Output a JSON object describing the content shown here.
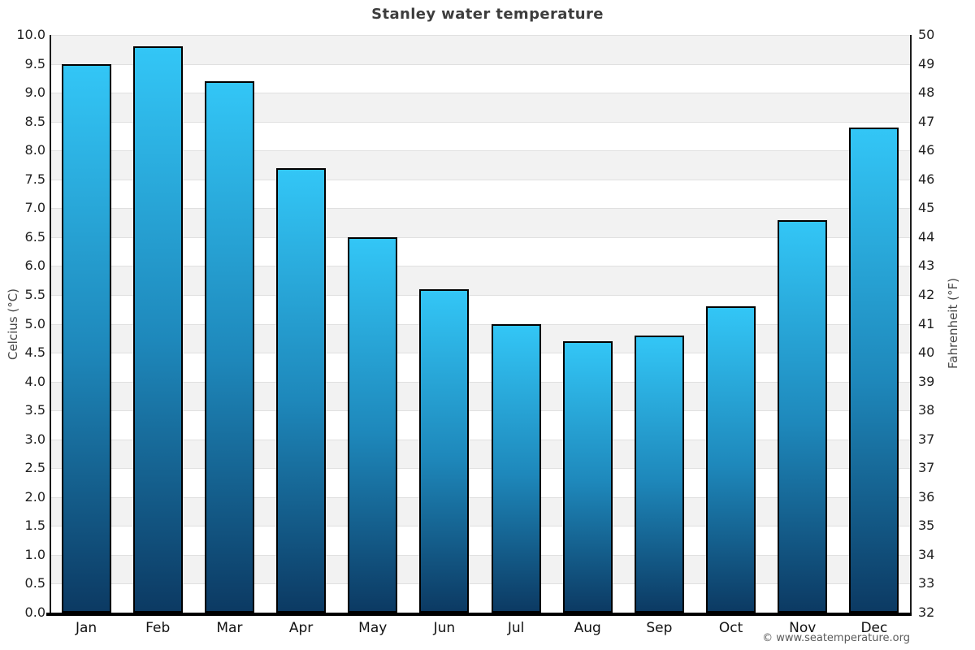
{
  "title": "Stanley water temperature",
  "attribution": "© www.seatemperature.org",
  "chart_data": {
    "type": "bar",
    "title": "Stanley water temperature",
    "categories": [
      "Jan",
      "Feb",
      "Mar",
      "Apr",
      "May",
      "Jun",
      "Jul",
      "Aug",
      "Sep",
      "Oct",
      "Nov",
      "Dec"
    ],
    "values": [
      9.5,
      9.8,
      9.2,
      7.7,
      6.5,
      5.6,
      5.0,
      4.7,
      4.8,
      5.3,
      6.8,
      8.4
    ],
    "ylabel_left": "Celcius (°C)",
    "ylabel_right": "Fahrenheit (°F)",
    "ylim_left": [
      0,
      10
    ],
    "ylim_right": [
      32,
      50
    ],
    "ytick_step_left": 0.5,
    "yticks_left": [
      "10.0",
      "9.5",
      "9.0",
      "8.5",
      "8.0",
      "7.5",
      "7.0",
      "6.5",
      "6.0",
      "5.5",
      "5.0",
      "4.5",
      "4.0",
      "3.5",
      "3.0",
      "2.5",
      "2.0",
      "1.5",
      "1.0",
      "0.5",
      "0.0"
    ],
    "yticks_right": [
      "50",
      "49",
      "48",
      "47",
      "46",
      "46",
      "45",
      "44",
      "43",
      "42",
      "41",
      "40",
      "39",
      "38",
      "37",
      "37",
      "36",
      "35",
      "34",
      "33",
      "32"
    ],
    "grid": true,
    "legend": false,
    "band_rows": true,
    "colors": {
      "bar_gradient_top": "#33c6f6",
      "bar_gradient_mid": "#1e88bb",
      "bar_gradient_bottom": "#0c3a63",
      "bar_border": "#000000",
      "band_gray": "#f2f2f2",
      "band_white": "#ffffff",
      "gridline": "#e0e0e0",
      "axis_line": "#1c1c1c",
      "title_color": "#3d3d3d",
      "tick_color": "#222222",
      "axis_label_color": "#484848",
      "attribution_color": "#5a5a5a"
    }
  }
}
